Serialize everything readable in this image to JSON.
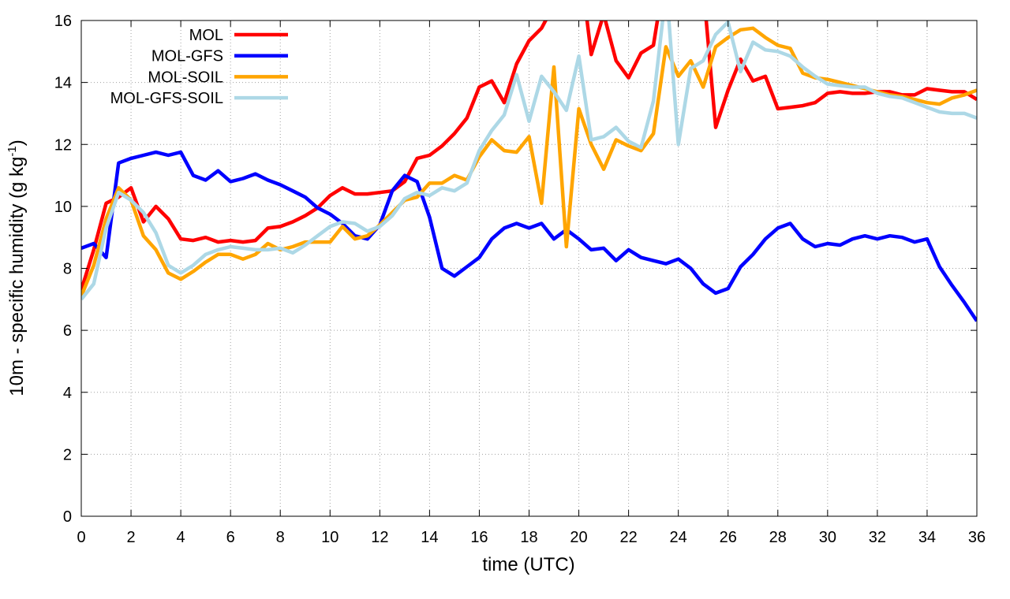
{
  "chart_data": {
    "type": "line",
    "xlabel": "time (UTC)",
    "ylabel": "10m - specific humidity (g kg",
    "ylabel_sup": "-1",
    "ylabel_tail": ")",
    "xlim": [
      0,
      36
    ],
    "ylim": [
      0,
      16
    ],
    "xticks": [
      0,
      2,
      4,
      6,
      8,
      10,
      12,
      14,
      16,
      18,
      20,
      22,
      24,
      26,
      28,
      30,
      32,
      34,
      36
    ],
    "yticks": [
      0,
      2,
      4,
      6,
      8,
      10,
      12,
      14,
      16
    ],
    "grid": true,
    "legend_position": "top-left",
    "series": [
      {
        "name": "MOL",
        "color": "#ff0000",
        "x": [
          0,
          0.5,
          1,
          1.5,
          2,
          2.5,
          3,
          3.5,
          4,
          4.5,
          5,
          5.5,
          6,
          6.5,
          7,
          7.5,
          8,
          8.5,
          9,
          9.5,
          10,
          10.5,
          11,
          11.5,
          12,
          12.5,
          13,
          13.5,
          14,
          14.5,
          15,
          15.5,
          16,
          16.5,
          17,
          17.5,
          18,
          18.5,
          18.8,
          19.2,
          19.6,
          20,
          20.3,
          20.5,
          21,
          21.5,
          22,
          22.5,
          23,
          23.2,
          23.7,
          24,
          24.3,
          24.5,
          25,
          25.1,
          25.5,
          26,
          26.5,
          27,
          27.5,
          28,
          28.5,
          29,
          29.5,
          30,
          30.5,
          31,
          31.5,
          32,
          32.5,
          33,
          33.5,
          34,
          34.5,
          35,
          35.5,
          36
        ],
        "y": [
          7.3,
          8.6,
          10.1,
          10.3,
          10.6,
          9.5,
          10.0,
          9.6,
          8.95,
          8.9,
          9.0,
          8.85,
          8.9,
          8.85,
          8.9,
          9.3,
          9.35,
          9.5,
          9.7,
          9.95,
          10.35,
          10.6,
          10.4,
          10.4,
          10.45,
          10.5,
          10.8,
          11.55,
          11.65,
          11.95,
          12.35,
          12.85,
          13.85,
          14.05,
          13.35,
          14.6,
          15.35,
          15.75,
          16.2,
          16.2,
          16.2,
          16.2,
          16.2,
          14.9,
          16.2,
          14.7,
          14.15,
          14.95,
          15.2,
          16.2,
          16.2,
          16.2,
          16.2,
          16.2,
          16.2,
          16.2,
          12.55,
          13.75,
          14.75,
          14.05,
          14.2,
          13.15,
          13.2,
          13.25,
          13.35,
          13.65,
          13.7,
          13.65,
          13.65,
          13.7,
          13.7,
          13.6,
          13.6,
          13.8,
          13.75,
          13.7,
          13.7,
          13.45
        ]
      },
      {
        "name": "MOL-GFS",
        "color": "#0000ff",
        "x": [
          0,
          0.5,
          1,
          1.5,
          2,
          2.5,
          3,
          3.5,
          4,
          4.5,
          5,
          5.5,
          6,
          6.5,
          7,
          7.5,
          8,
          8.5,
          9,
          9.5,
          10,
          10.5,
          11,
          11.5,
          12,
          12.5,
          13,
          13.5,
          14,
          14.5,
          15,
          15.5,
          16,
          16.5,
          17,
          17.5,
          18,
          18.5,
          19,
          19.5,
          20,
          20.5,
          21,
          21.5,
          22,
          22.5,
          23,
          23.5,
          24,
          24.5,
          25,
          25.5,
          26,
          26.5,
          27,
          27.5,
          28,
          28.5,
          29,
          29.5,
          30,
          30.5,
          31,
          31.5,
          32,
          32.5,
          33,
          33.5,
          34,
          34.5,
          35,
          35.5,
          36
        ],
        "y": [
          8.65,
          8.8,
          8.35,
          11.4,
          11.55,
          11.65,
          11.75,
          11.65,
          11.75,
          11.0,
          10.85,
          11.15,
          10.8,
          10.9,
          11.05,
          10.85,
          10.7,
          10.5,
          10.3,
          9.95,
          9.75,
          9.45,
          9.05,
          8.95,
          9.4,
          10.5,
          11.0,
          10.8,
          9.65,
          8.0,
          7.75,
          8.05,
          8.35,
          8.95,
          9.3,
          9.45,
          9.3,
          9.45,
          8.95,
          9.25,
          8.95,
          8.6,
          8.65,
          8.25,
          8.6,
          8.35,
          8.25,
          8.15,
          8.3,
          8.0,
          7.5,
          7.2,
          7.35,
          8.05,
          8.45,
          8.95,
          9.3,
          9.45,
          8.95,
          8.7,
          8.8,
          8.75,
          8.95,
          9.05,
          8.95,
          9.05,
          9.0,
          8.85,
          8.95,
          8.05,
          7.45,
          6.9,
          6.3
        ]
      },
      {
        "name": "MOL-SOIL",
        "color": "#ffa500",
        "x": [
          0,
          0.5,
          1,
          1.5,
          2,
          2.5,
          3,
          3.5,
          4,
          4.5,
          5,
          5.5,
          6,
          6.5,
          7,
          7.5,
          8,
          8.5,
          9,
          9.5,
          10,
          10.5,
          11,
          11.5,
          12,
          12.5,
          13,
          13.5,
          14,
          14.5,
          15,
          15.5,
          16,
          16.5,
          17,
          17.5,
          18,
          18.5,
          19,
          19.5,
          20,
          20.5,
          21,
          21.5,
          22,
          22.5,
          23,
          23.5,
          24,
          24.5,
          25,
          25.5,
          26,
          26.5,
          27,
          27.5,
          28,
          28.5,
          29,
          29.5,
          30,
          30.5,
          31,
          31.5,
          32,
          32.5,
          33,
          33.5,
          34,
          34.5,
          35,
          35.5,
          36
        ],
        "y": [
          7.1,
          8.1,
          9.6,
          10.6,
          10.2,
          9.05,
          8.6,
          7.85,
          7.65,
          7.9,
          8.2,
          8.45,
          8.45,
          8.3,
          8.45,
          8.8,
          8.6,
          8.7,
          8.85,
          8.85,
          8.85,
          9.35,
          8.95,
          9.05,
          9.4,
          9.8,
          10.2,
          10.3,
          10.75,
          10.75,
          11.0,
          10.85,
          11.6,
          12.15,
          11.8,
          11.75,
          12.25,
          10.1,
          14.5,
          8.7,
          13.15,
          12.0,
          11.2,
          12.15,
          11.95,
          11.8,
          12.35,
          15.15,
          14.2,
          14.7,
          13.85,
          15.15,
          15.45,
          15.7,
          15.75,
          15.45,
          15.2,
          15.1,
          14.3,
          14.15,
          14.1,
          14.0,
          13.9,
          13.8,
          13.7,
          13.6,
          13.55,
          13.45,
          13.35,
          13.3,
          13.5,
          13.6,
          13.75
        ]
      },
      {
        "name": "MOL-GFS-SOIL",
        "color": "#add8e6",
        "x": [
          0,
          0.5,
          1,
          1.5,
          2,
          2.5,
          3,
          3.5,
          4,
          4.5,
          5,
          5.5,
          6,
          6.5,
          7,
          7.5,
          8,
          8.5,
          9,
          9.5,
          10,
          10.5,
          11,
          11.5,
          12,
          12.5,
          13,
          13.5,
          14,
          14.5,
          15,
          15.5,
          16,
          16.5,
          17,
          17.5,
          18,
          18.5,
          19,
          19.5,
          20,
          20.5,
          21,
          21.5,
          22,
          22.5,
          23,
          23.4,
          23.6,
          24,
          24.5,
          25,
          25.5,
          26,
          26.5,
          27,
          27.5,
          28,
          28.5,
          29,
          29.5,
          30,
          30.5,
          31,
          31.5,
          32,
          32.5,
          33,
          33.5,
          34,
          34.5,
          35,
          35.5,
          36
        ],
        "y": [
          7.0,
          7.5,
          9.3,
          10.45,
          10.2,
          9.8,
          9.15,
          8.1,
          7.85,
          8.1,
          8.45,
          8.6,
          8.7,
          8.65,
          8.6,
          8.6,
          8.65,
          8.5,
          8.75,
          9.05,
          9.35,
          9.5,
          9.45,
          9.2,
          9.35,
          9.7,
          10.25,
          10.45,
          10.35,
          10.6,
          10.5,
          10.75,
          11.8,
          12.45,
          12.95,
          14.25,
          12.75,
          14.2,
          13.7,
          13.1,
          14.85,
          12.15,
          12.25,
          12.55,
          12.1,
          11.9,
          13.4,
          16.2,
          16.2,
          12.0,
          14.45,
          14.7,
          15.55,
          15.95,
          14.35,
          15.3,
          15.05,
          15.0,
          14.85,
          14.5,
          14.2,
          13.95,
          13.9,
          13.85,
          13.85,
          13.65,
          13.55,
          13.5,
          13.35,
          13.2,
          13.05,
          13.0,
          13.0,
          12.85
        ]
      }
    ]
  }
}
